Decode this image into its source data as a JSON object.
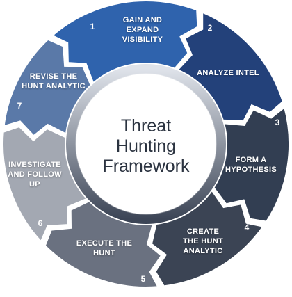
{
  "center_title": {
    "line1": "Threat",
    "line2": "Hunting",
    "line3": "Framework"
  },
  "steps": [
    {
      "number": "1",
      "lines": [
        "GAIN AND",
        "EXPAND",
        "VISIBILITY"
      ],
      "color": "#2f63ad"
    },
    {
      "number": "2",
      "lines": [
        "ANALYZE INTEL"
      ],
      "color": "#23417a"
    },
    {
      "number": "3",
      "lines": [
        "FORM A",
        "HYPOTHESIS"
      ],
      "color": "#323e52"
    },
    {
      "number": "4",
      "lines": [
        "CREATE",
        "THE HUNT",
        "ANALYTIC"
      ],
      "color": "#3b4454"
    },
    {
      "number": "5",
      "lines": [
        "EXECUTE THE",
        "HUNT"
      ],
      "color": "#6a7180"
    },
    {
      "number": "6",
      "lines": [
        "INVESTIGATE",
        "AND FOLLOW",
        "UP"
      ],
      "color": "#a3a8b2"
    },
    {
      "number": "7",
      "lines": [
        "REVISE THE",
        "HUNT ANALYTIC"
      ],
      "color": "#5a79a8"
    }
  ],
  "colors": {
    "inner_ring_light": "#dfe3ea",
    "inner_ring_dark": "#3c4556",
    "center_fill": "#ffffff",
    "center_text": "#2b3340",
    "label_text": "#ffffff",
    "number_text": "#ffffff"
  }
}
